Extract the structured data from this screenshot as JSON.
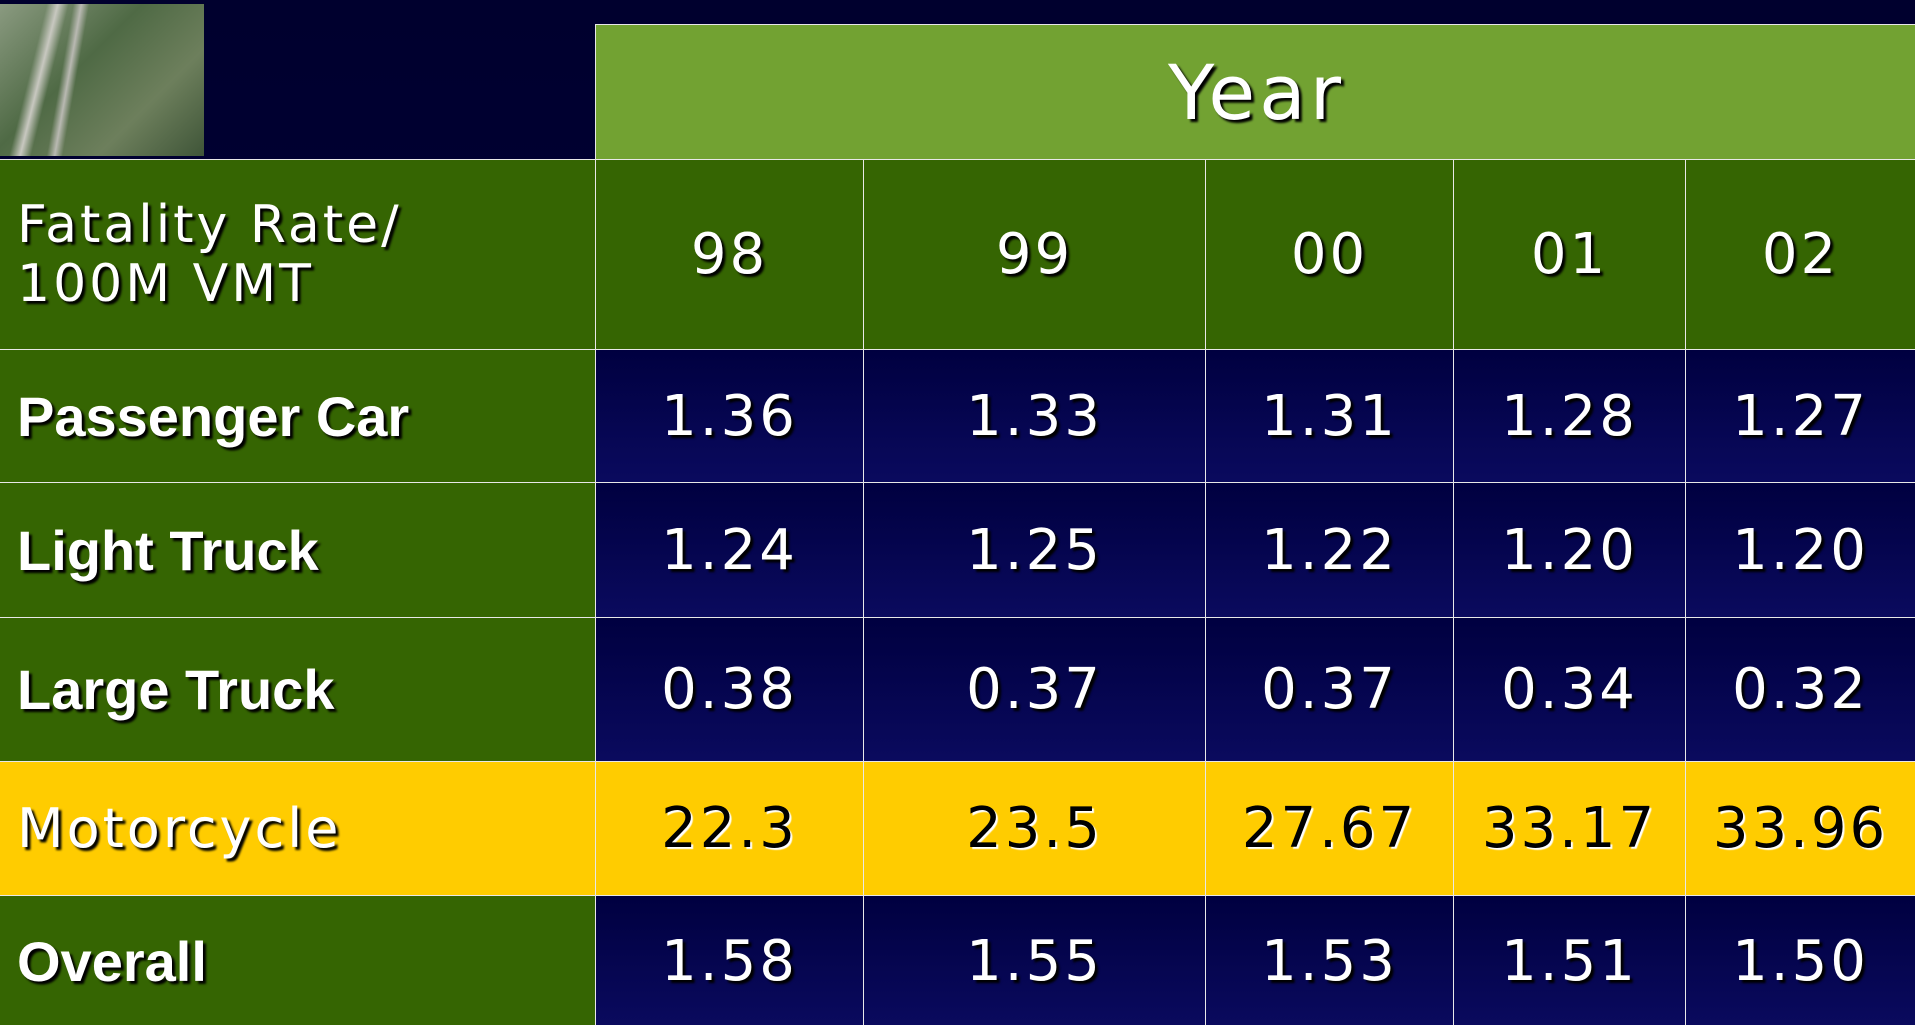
{
  "header": {
    "title": "Year"
  },
  "table": {
    "corner": "Fatality Rate/\n100M VMT",
    "years": [
      "98",
      "99",
      "00",
      "01",
      "02"
    ],
    "rows": [
      {
        "label": "Passenger Car",
        "values": [
          "1.36",
          "1.33",
          "1.31",
          "1.28",
          "1.27"
        ]
      },
      {
        "label": "Light Truck",
        "values": [
          "1.24",
          "1.25",
          "1.22",
          "1.20",
          "1.20"
        ]
      },
      {
        "label": "Large Truck",
        "values": [
          "0.38",
          "0.37",
          "0.37",
          "0.34",
          "0.32"
        ]
      },
      {
        "label": "Motorcycle",
        "values": [
          "22.3",
          "23.5",
          "27.67",
          "33.17",
          "33.96"
        ]
      },
      {
        "label": "Overall",
        "values": [
          "1.58",
          "1.55",
          "1.53",
          "1.51",
          "1.50"
        ]
      }
    ]
  }
}
